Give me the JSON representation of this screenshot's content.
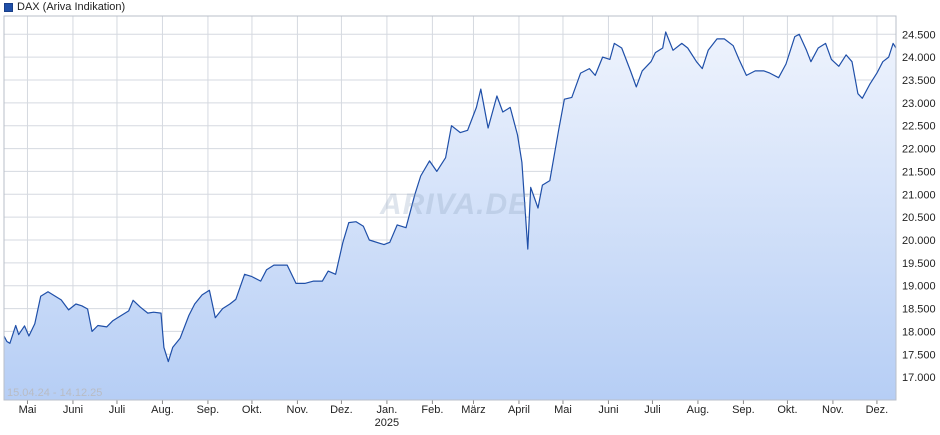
{
  "legend": {
    "label": "DAX (Ariva Indikation)",
    "color": "#1f4fa8"
  },
  "range_label": "15.04.24 - 14.12.25",
  "watermark": "ARIVA.DE",
  "chart_data": {
    "type": "area",
    "series": [
      {
        "name": "DAX (Ariva Indikation)",
        "comment_points": "approximate daily closes read from chart, [date, value]",
        "points": [
          [
            "2024-04-15",
            17900
          ],
          [
            "2024-04-17",
            17780
          ],
          [
            "2024-04-19",
            17740
          ],
          [
            "2024-04-23",
            18130
          ],
          [
            "2024-04-25",
            17930
          ],
          [
            "2024-04-29",
            18120
          ],
          [
            "2024-05-02",
            17900
          ],
          [
            "2024-05-06",
            18170
          ],
          [
            "2024-05-10",
            18770
          ],
          [
            "2024-05-15",
            18870
          ],
          [
            "2024-05-20",
            18770
          ],
          [
            "2024-05-24",
            18690
          ],
          [
            "2024-05-29",
            18470
          ],
          [
            "2024-06-03",
            18600
          ],
          [
            "2024-06-07",
            18560
          ],
          [
            "2024-06-11",
            18490
          ],
          [
            "2024-06-14",
            18000
          ],
          [
            "2024-06-18",
            18130
          ],
          [
            "2024-06-24",
            18100
          ],
          [
            "2024-06-28",
            18230
          ],
          [
            "2024-07-04",
            18350
          ],
          [
            "2024-07-09",
            18450
          ],
          [
            "2024-07-12",
            18680
          ],
          [
            "2024-07-17",
            18530
          ],
          [
            "2024-07-22",
            18400
          ],
          [
            "2024-07-26",
            18420
          ],
          [
            "2024-07-31",
            18400
          ],
          [
            "2024-08-02",
            17650
          ],
          [
            "2024-08-05",
            17340
          ],
          [
            "2024-08-08",
            17650
          ],
          [
            "2024-08-13",
            17850
          ],
          [
            "2024-08-19",
            18350
          ],
          [
            "2024-08-23",
            18600
          ],
          [
            "2024-08-28",
            18800
          ],
          [
            "2024-09-02",
            18900
          ],
          [
            "2024-09-06",
            18300
          ],
          [
            "2024-09-11",
            18500
          ],
          [
            "2024-09-16",
            18600
          ],
          [
            "2024-09-20",
            18700
          ],
          [
            "2024-09-26",
            19250
          ],
          [
            "2024-10-01",
            19200
          ],
          [
            "2024-10-07",
            19100
          ],
          [
            "2024-10-11",
            19350
          ],
          [
            "2024-10-16",
            19450
          ],
          [
            "2024-10-21",
            19450
          ],
          [
            "2024-10-25",
            19450
          ],
          [
            "2024-10-31",
            19050
          ],
          [
            "2024-11-06",
            19050
          ],
          [
            "2024-11-12",
            19100
          ],
          [
            "2024-11-18",
            19100
          ],
          [
            "2024-11-22",
            19320
          ],
          [
            "2024-11-27",
            19250
          ],
          [
            "2024-12-02",
            19950
          ],
          [
            "2024-12-06",
            20380
          ],
          [
            "2024-12-11",
            20400
          ],
          [
            "2024-12-16",
            20300
          ],
          [
            "2024-12-20",
            20000
          ],
          [
            "2024-12-30",
            19900
          ],
          [
            "2025-01-03",
            19950
          ],
          [
            "2025-01-08",
            20330
          ],
          [
            "2025-01-14",
            20270
          ],
          [
            "2025-01-20",
            20990
          ],
          [
            "2025-01-24",
            21400
          ],
          [
            "2025-01-30",
            21730
          ],
          [
            "2025-02-04",
            21500
          ],
          [
            "2025-02-10",
            21800
          ],
          [
            "2025-02-14",
            22500
          ],
          [
            "2025-02-20",
            22350
          ],
          [
            "2025-02-25",
            22400
          ],
          [
            "2025-03-03",
            22900
          ],
          [
            "2025-03-06",
            23300
          ],
          [
            "2025-03-11",
            22450
          ],
          [
            "2025-03-17",
            23150
          ],
          [
            "2025-03-21",
            22800
          ],
          [
            "2025-03-26",
            22900
          ],
          [
            "2025-03-31",
            22300
          ],
          [
            "2025-04-03",
            21700
          ],
          [
            "2025-04-07",
            19800
          ],
          [
            "2025-04-09",
            21150
          ],
          [
            "2025-04-14",
            20700
          ],
          [
            "2025-04-17",
            21200
          ],
          [
            "2025-04-22",
            21300
          ],
          [
            "2025-04-28",
            22400
          ],
          [
            "2025-05-02",
            23080
          ],
          [
            "2025-05-07",
            23120
          ],
          [
            "2025-05-13",
            23650
          ],
          [
            "2025-05-19",
            23750
          ],
          [
            "2025-05-23",
            23600
          ],
          [
            "2025-05-28",
            24000
          ],
          [
            "2025-06-02",
            23950
          ],
          [
            "2025-06-05",
            24300
          ],
          [
            "2025-06-10",
            24200
          ],
          [
            "2025-06-16",
            23700
          ],
          [
            "2025-06-20",
            23350
          ],
          [
            "2025-06-24",
            23700
          ],
          [
            "2025-06-30",
            23900
          ],
          [
            "2025-07-03",
            24100
          ],
          [
            "2025-07-08",
            24200
          ],
          [
            "2025-07-10",
            24550
          ],
          [
            "2025-07-15",
            24150
          ],
          [
            "2025-07-21",
            24300
          ],
          [
            "2025-07-25",
            24200
          ],
          [
            "2025-07-31",
            23900
          ],
          [
            "2025-08-04",
            23750
          ],
          [
            "2025-08-08",
            24150
          ],
          [
            "2025-08-14",
            24400
          ],
          [
            "2025-08-19",
            24400
          ],
          [
            "2025-08-25",
            24250
          ],
          [
            "2025-08-29",
            23950
          ],
          [
            "2025-09-03",
            23600
          ],
          [
            "2025-09-09",
            23700
          ],
          [
            "2025-09-15",
            23700
          ],
          [
            "2025-09-19",
            23650
          ],
          [
            "2025-09-25",
            23550
          ],
          [
            "2025-09-30",
            23850
          ],
          [
            "2025-10-06",
            24450
          ],
          [
            "2025-10-09",
            24500
          ],
          [
            "2025-10-14",
            24150
          ],
          [
            "2025-10-17",
            23900
          ],
          [
            "2025-10-22",
            24200
          ],
          [
            "2025-10-27",
            24300
          ],
          [
            "2025-10-31",
            23950
          ],
          [
            "2025-11-05",
            23800
          ],
          [
            "2025-11-10",
            24050
          ],
          [
            "2025-11-14",
            23900
          ],
          [
            "2025-11-18",
            23200
          ],
          [
            "2025-11-21",
            23100
          ],
          [
            "2025-11-26",
            23400
          ],
          [
            "2025-12-01",
            23650
          ],
          [
            "2025-12-05",
            23900
          ],
          [
            "2025-12-09",
            24000
          ],
          [
            "2025-12-12",
            24300
          ],
          [
            "2025-12-14",
            24200
          ]
        ]
      }
    ],
    "x_range": [
      "2024-04-15",
      "2025-12-14"
    ],
    "ylim": [
      16500,
      24900
    ],
    "y_ticks": [
      17000,
      17500,
      18000,
      18500,
      19000,
      19500,
      20000,
      20500,
      21000,
      21500,
      22000,
      22500,
      23000,
      23500,
      24000,
      24500
    ],
    "y_tick_labels": [
      "17.000",
      "17.500",
      "18.000",
      "18.500",
      "19.000",
      "19.500",
      "20.000",
      "20.500",
      "21.000",
      "21.500",
      "22.000",
      "22.500",
      "23.000",
      "23.500",
      "24.000",
      "24.500"
    ],
    "x_ticks": [
      {
        "date": "2024-05-01",
        "label": "Mai"
      },
      {
        "date": "2024-06-01",
        "label": "Juni"
      },
      {
        "date": "2024-07-01",
        "label": "Juli"
      },
      {
        "date": "2024-08-01",
        "label": "Aug."
      },
      {
        "date": "2024-09-01",
        "label": "Sep."
      },
      {
        "date": "2024-10-01",
        "label": "Okt."
      },
      {
        "date": "2024-11-01",
        "label": "Nov."
      },
      {
        "date": "2024-12-01",
        "label": "Dez."
      },
      {
        "date": "2025-01-01",
        "label": "Jan.",
        "sublabel": "2025"
      },
      {
        "date": "2025-02-01",
        "label": "Feb."
      },
      {
        "date": "2025-03-01",
        "label": "März"
      },
      {
        "date": "2025-04-01",
        "label": "April"
      },
      {
        "date": "2025-05-01",
        "label": "Mai"
      },
      {
        "date": "2025-06-01",
        "label": "Juni"
      },
      {
        "date": "2025-07-01",
        "label": "Juli"
      },
      {
        "date": "2025-08-01",
        "label": "Aug."
      },
      {
        "date": "2025-09-01",
        "label": "Sep."
      },
      {
        "date": "2025-10-01",
        "label": "Okt."
      },
      {
        "date": "2025-11-01",
        "label": "Nov."
      },
      {
        "date": "2025-12-01",
        "label": "Dez."
      }
    ],
    "grid": true,
    "colors": {
      "line": "#1f4fa8",
      "fill_top": "#eef3fd",
      "fill_bottom": "#b6cef5",
      "grid": "#d5d9e0"
    }
  }
}
